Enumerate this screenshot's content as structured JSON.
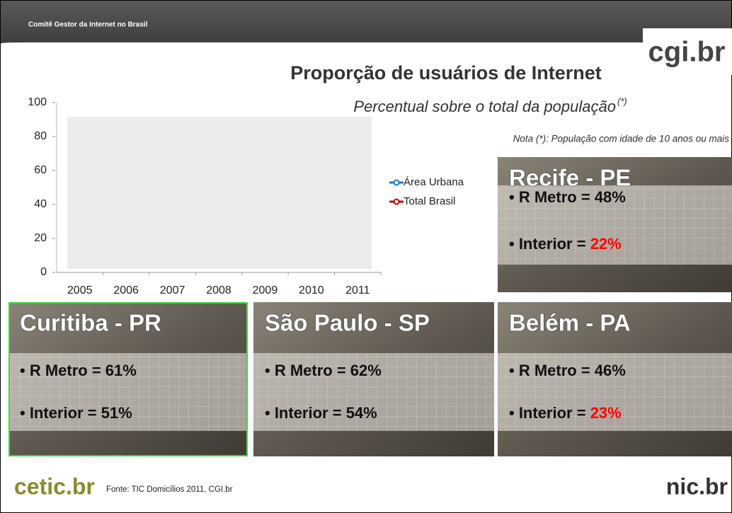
{
  "header": {
    "org": "Comitê Gestor da Internet no Brasil",
    "logo": "cgi.br",
    "title": "Proporção de usuários de Internet",
    "subtitle": "Percentual sobre o total da população",
    "subtitle_mark": "(*)",
    "note": "Nota (*): População com idade de 10 anos ou mais"
  },
  "chart_data": {
    "type": "line",
    "categories": [
      "2005",
      "2006",
      "2007",
      "2008",
      "2009",
      "2010",
      "2011"
    ],
    "series": [
      {
        "name": "Área Urbana",
        "color": "#1f78c8",
        "values": [
          null,
          null,
          null,
          null,
          null,
          null,
          null
        ]
      },
      {
        "name": "Total Brasil",
        "color": "#c00000",
        "values": [
          null,
          null,
          null,
          null,
          null,
          null,
          null
        ]
      }
    ],
    "ylim": [
      0,
      100
    ],
    "yticks": [
      0,
      20,
      40,
      60,
      80,
      100
    ]
  },
  "panels": [
    {
      "title": "Recife - PE",
      "items": [
        {
          "label": "• R Metro = ",
          "value": "48%"
        },
        {
          "label": "• Interior  = ",
          "value": "22%",
          "color": "#ff0000"
        }
      ]
    },
    {
      "title": "Curitiba - PR",
      "items": [
        {
          "label": "• R Metro = ",
          "value": "61%"
        },
        {
          "label": "• Interior  = ",
          "value": "51%"
        }
      ]
    },
    {
      "title": "São Paulo - SP",
      "items": [
        {
          "label": "• R Metro = ",
          "value": "62%"
        },
        {
          "label": "• Interior  = ",
          "value": "54%"
        }
      ]
    },
    {
      "title": "Belém - PA",
      "items": [
        {
          "label": "• R Metro = ",
          "value": "46%"
        },
        {
          "label": "• Interior  = ",
          "value": "23%",
          "color": "#ff0000"
        }
      ]
    }
  ],
  "footer": {
    "logo_left": "cetic.br",
    "source": "Fonte: TIC Domicílios 2011, CGI.br",
    "logo_right": "nic.br"
  }
}
